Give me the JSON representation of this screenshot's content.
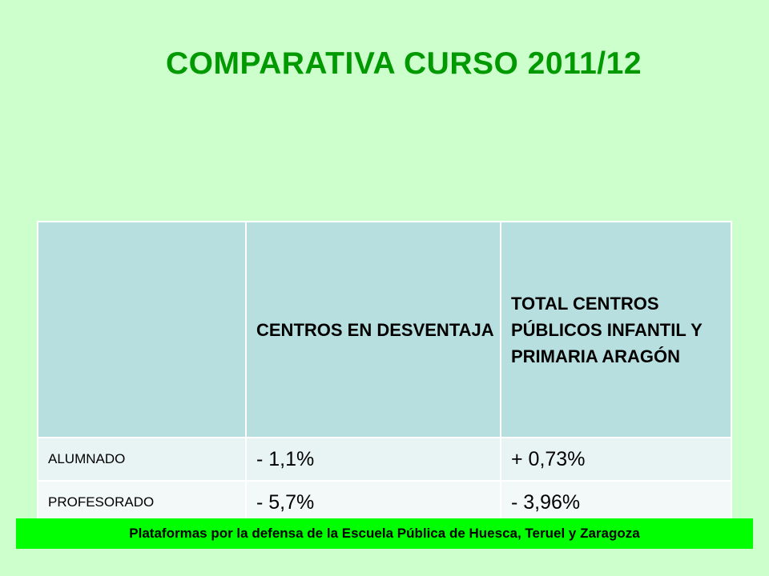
{
  "title": "COMPARATIVA CURSO 2011/12",
  "table": {
    "headers": [
      "",
      "CENTROS EN DESVENTAJA",
      "TOTAL CENTROS PÚBLICOS INFANTIL Y PRIMARIA ARAGÓN"
    ],
    "rows": [
      {
        "label": "ALUMNADO",
        "values": [
          "- 1,1%",
          "+ 0,73%"
        ]
      },
      {
        "label": "PROFESORADO",
        "values": [
          "- 5,7%",
          "- 3,96%"
        ]
      }
    ]
  },
  "footer": "Plataformas por la defensa de la Escuela Pública de Huesca, Teruel y Zaragoza",
  "colors": {
    "background": "#ccffcc",
    "title": "#009900",
    "header_cell": "#b7dfe0",
    "row_1": "#e8f4f3",
    "row_2": "#f2f9f8",
    "footer_band": "#00ff00"
  }
}
